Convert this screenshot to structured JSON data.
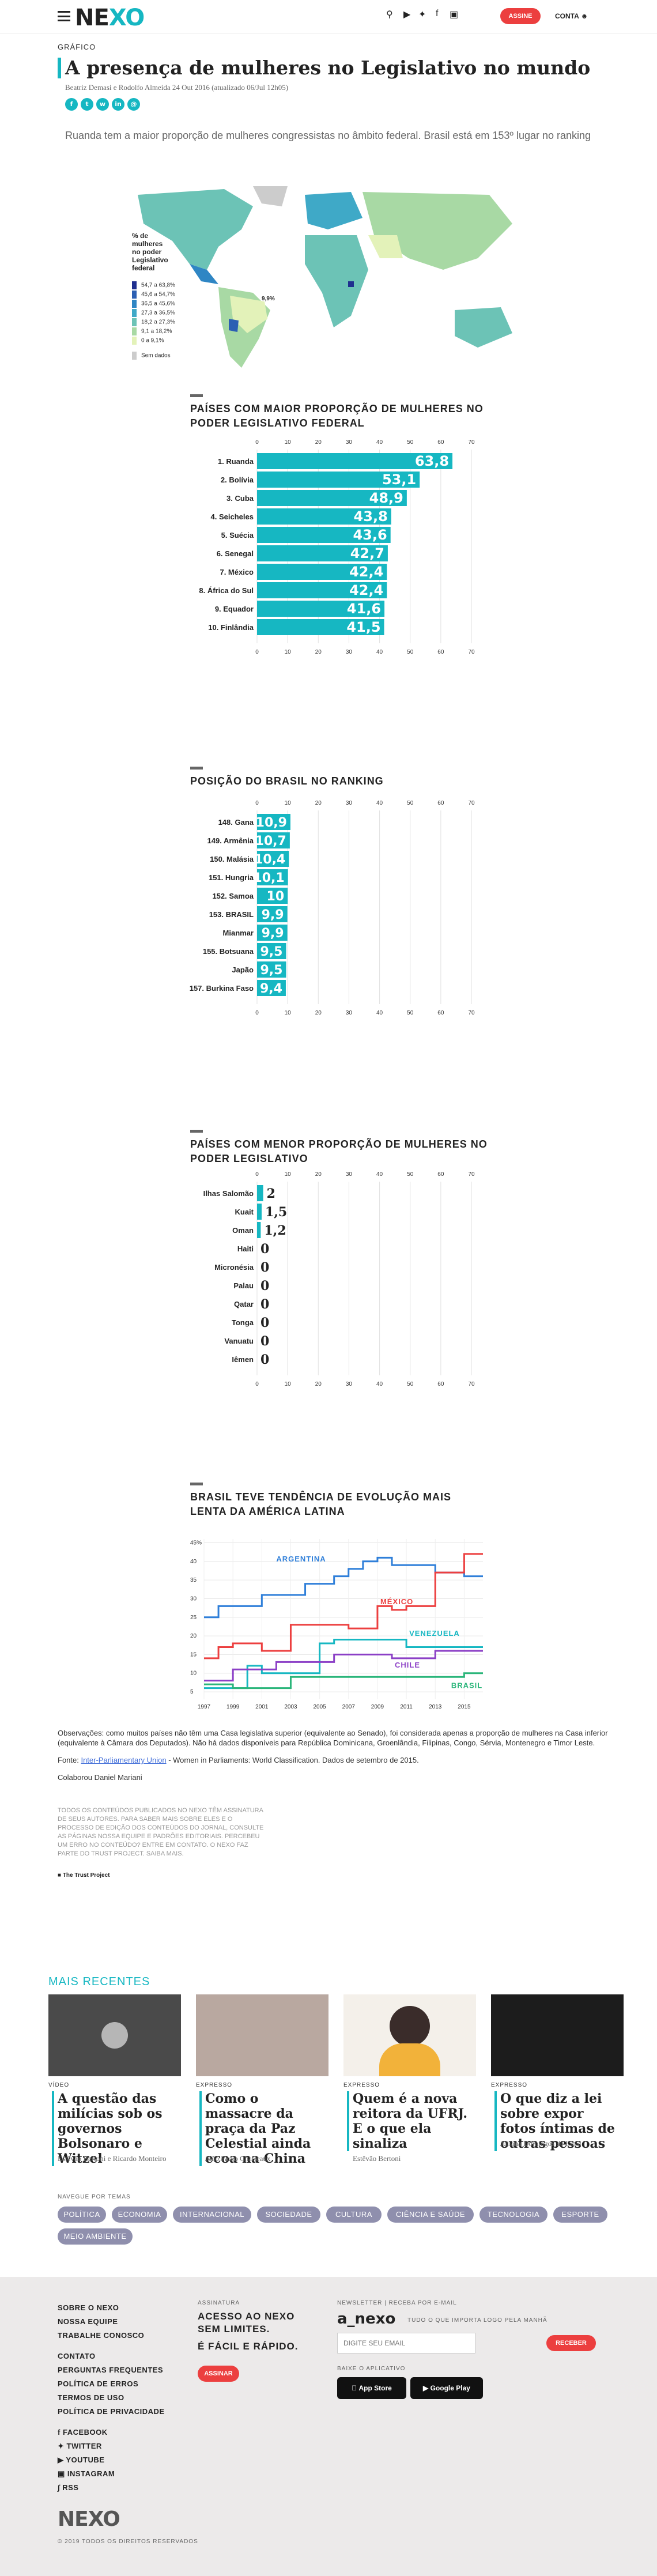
{
  "header": {
    "logo_pre": "NE",
    "logo_post": "XO",
    "assine": "ASSINE",
    "conta": "CONTA"
  },
  "article": {
    "kicker": "GRÁFICO",
    "title": "A presença de mulheres no Legislativo no mundo",
    "byline": "Beatriz Demasi e Rodolfo Almeida 24 Out 2016 (atualizado 06/Jul 12h05)",
    "lede": "Ruanda tem a maior proporção de mulheres congressistas no âmbito federal. Brasil está em 153º lugar no ranking",
    "share_icons": [
      "facebook-icon",
      "twitter-icon",
      "whatsapp-icon",
      "linkedin-icon",
      "email-icon"
    ]
  },
  "map": {
    "legend_title": "% de mulheres no poder Legislativo federal",
    "legend": [
      {
        "label": "54,7 a 63,8%",
        "color": "#1f2f8f"
      },
      {
        "label": "45,6 a 54,7%",
        "color": "#2b5fb3"
      },
      {
        "label": "36,5 a 45,6%",
        "color": "#2f86c4"
      },
      {
        "label": "27,3 a 36,5%",
        "color": "#3fa9c7"
      },
      {
        "label": "18,2 a 27,3%",
        "color": "#6cc3b6"
      },
      {
        "label": "9,1 a 18,2%",
        "color": "#a8d9a4"
      },
      {
        "label": "0 a 9,1%",
        "color": "#e3f2b9"
      },
      {
        "label": "Sem dados",
        "color": "#cccccc"
      }
    ],
    "brazil_label": "9,9%"
  },
  "chart_data": [
    {
      "type": "bar",
      "title": "PAÍSES COM MAIOR PROPORÇÃO DE MULHERES NO PODER LEGISLATIVO FEDERAL",
      "categories": [
        "1. Ruanda",
        "2. Bolívia",
        "3. Cuba",
        "4. Seicheles",
        "5. Suécia",
        "6. Senegal",
        "7. México",
        "8. África do Sul",
        "9. Equador",
        "10. Finlândia"
      ],
      "values": [
        63.8,
        53.1,
        48.9,
        43.8,
        43.6,
        42.7,
        42.4,
        42.4,
        41.6,
        41.5
      ],
      "labels": [
        "63,8",
        "53,1",
        "48,9",
        "43,8",
        "43,6",
        "42,7",
        "42,4",
        "42,4",
        "41,6",
        "41,5"
      ],
      "xlim": [
        0,
        70
      ],
      "ticks": [
        0,
        10,
        20,
        30,
        40,
        50,
        60,
        70
      ],
      "color": "#16b7c2"
    },
    {
      "type": "bar",
      "title": "POSIÇÃO DO BRASIL NO RANKING",
      "categories": [
        "148. Gana",
        "149. Armênia",
        "150. Malásia",
        "151. Hungria",
        "152. Samoa",
        "153. BRASIL",
        "Mianmar",
        "155. Botsuana",
        "Japão",
        "157. Burkina Faso"
      ],
      "values": [
        10.9,
        10.7,
        10.4,
        10.1,
        10,
        9.9,
        9.9,
        9.5,
        9.5,
        9.4
      ],
      "labels": [
        "10,9",
        "10,7",
        "10,4",
        "10,1",
        "10",
        "9,9",
        "9,9",
        "9,5",
        "9,5",
        "9,4"
      ],
      "xlim": [
        0,
        70
      ],
      "ticks": [
        0,
        10,
        20,
        30,
        40,
        50,
        60,
        70
      ],
      "color": "#16b7c2"
    },
    {
      "type": "bar",
      "title": "PAÍSES COM MENOR PROPORÇÃO DE MULHERES NO PODER LEGISLATIVO",
      "categories": [
        "Ilhas Salomão",
        "Kuait",
        "Oman",
        "Haiti",
        "Micronésia",
        "Palau",
        "Qatar",
        "Tonga",
        "Vanuatu",
        "Iêmen"
      ],
      "values": [
        2,
        1.5,
        1.2,
        0,
        0,
        0,
        0,
        0,
        0,
        0
      ],
      "labels": [
        "2",
        "1,5",
        "1,2",
        "0",
        "0",
        "0",
        "0",
        "0",
        "0",
        "0"
      ],
      "xlim": [
        0,
        70
      ],
      "ticks": [
        0,
        10,
        20,
        30,
        40,
        50,
        60,
        70
      ],
      "color": "#16b7c2"
    },
    {
      "type": "line",
      "title": "BRASIL TEVE TENDÊNCIA DE EVOLUÇÃO MAIS LENTA DA AMÉRICA LATINA",
      "x": [
        1997,
        1998,
        1999,
        2000,
        2001,
        2002,
        2003,
        2004,
        2005,
        2006,
        2007,
        2008,
        2009,
        2010,
        2011,
        2012,
        2013,
        2014,
        2015,
        2016
      ],
      "xticks": [
        1997,
        1999,
        2001,
        2003,
        2005,
        2007,
        2009,
        2011,
        2013,
        2015
      ],
      "yticks": [
        5,
        10,
        15,
        20,
        25,
        30,
        35,
        40,
        45
      ],
      "ylim": [
        3,
        46
      ],
      "series": [
        {
          "name": "ARGENTINA",
          "color": "#2f7fd9",
          "values": [
            25,
            28,
            28,
            28,
            31,
            31,
            31,
            34,
            34,
            36,
            38,
            40,
            41,
            39,
            39,
            39,
            37,
            37,
            36,
            36
          ]
        },
        {
          "name": "MÉXICO",
          "color": "#ec3f3f",
          "values": [
            14,
            17,
            18,
            18,
            16,
            16,
            23,
            23,
            23,
            23,
            22,
            22,
            28,
            27,
            28,
            28,
            37,
            37,
            42,
            42
          ]
        },
        {
          "name": "VENEZUELA",
          "color": "#16b7c2",
          "values": [
            6,
            6,
            6,
            12,
            10,
            10,
            10,
            10,
            18,
            19,
            19,
            19,
            19,
            19,
            17,
            17,
            17,
            17,
            17,
            17
          ]
        },
        {
          "name": "CHILE",
          "color": "#8b3fc6",
          "values": [
            8,
            8,
            11,
            11,
            11,
            13,
            13,
            13,
            13,
            15,
            15,
            15,
            15,
            14,
            14,
            14,
            16,
            16,
            16,
            16
          ]
        },
        {
          "name": "BRASIL",
          "color": "#2ab57a",
          "values": [
            7,
            7,
            6,
            6,
            6,
            6,
            9,
            9,
            9,
            9,
            9,
            9,
            9,
            9,
            9,
            9,
            9,
            9,
            10,
            10
          ]
        }
      ]
    }
  ],
  "footnotes": {
    "obs": "Observações: como muitos países não têm uma Casa legislativa superior (equivalente ao Senado), foi considerada apenas a proporção de mulheres na Casa inferior (equivalente à Câmara dos Deputados). Não há dados disponíveis para República Dominicana, Groenlândia, Filipinas, Congo, Sérvia, Montenegro e Timor Leste.",
    "fonte_pre": "Fonte: ",
    "fonte_link": "Inter-Parliamentary Union",
    "fonte_post": " - Women in Parliaments: World Classification. Dados de setembro de 2015.",
    "colab": "Colaborou Daniel Mariani",
    "legal": "TODOS OS CONTEÚDOS PUBLICADOS NO NEXO TÊM ASSINATURA DE SEUS AUTORES. PARA SABER MAIS SOBRE ELES E O PROCESSO DE EDIÇÃO DOS CONTEÚDOS DO JORNAL, CONSULTE AS PÁGINAS NOSSA EQUIPE E PADRÕES EDITORIAIS. PERCEBEU UM ERRO NO CONTEÚDO? ENTRE EM CONTATO. O NEXO FAZ PARTE DO TRUST PROJECT. SAIBA MAIS.",
    "trust": "The Trust Project"
  },
  "recent": {
    "heading": "MAIS RECENTES",
    "cards": [
      {
        "kicker": "VÍDEO",
        "title": "A questão das milícias sob os governos Bolsonaro e Witzel",
        "author": "Estêvão Bertoni e Ricardo Monteiro"
      },
      {
        "kicker": "EXPRESSO",
        "title": "Como o massacre da praça da Paz Celestial ainda ecoa na China",
        "author": "João Paulo Charleaux"
      },
      {
        "kicker": "EXPRESSO",
        "title": "Quem é a nova reitora da UFRJ. E o que ela sinaliza",
        "author": "Estêvão Bertoni"
      },
      {
        "kicker": "EXPRESSO",
        "title": "O que diz a lei sobre expor fotos íntimas de outras pessoas",
        "author": "Juliana Domingos de Lima"
      }
    ]
  },
  "topics": {
    "heading": "NAVEGUE POR TEMAS",
    "items": [
      "POLÍTICA",
      "ECONOMIA",
      "INTERNACIONAL",
      "SOCIEDADE",
      "CULTURA",
      "CIÊNCIA E SAÚDE",
      "TECNOLOGIA",
      "ESPORTE",
      "MEIO AMBIENTE"
    ]
  },
  "footer": {
    "col1": [
      "SOBRE O NEXO",
      "NOSSA EQUIPE",
      "TRABALHE CONOSCO"
    ],
    "col2": [
      "CONTATO",
      "PERGUNTAS FREQUENTES",
      "POLÍTICA DE ERROS",
      "TERMOS DE USO",
      "POLÍTICA DE PRIVACIDADE"
    ],
    "social": [
      "FACEBOOK",
      "TWITTER",
      "YOUTUBE",
      "INSTAGRAM",
      "RSS"
    ],
    "sub_kicker": "ASSINATURA",
    "sub_line1": "ACESSO AO NEXO SEM LIMITES.",
    "sub_line2": "É FÁCIL E RÁPIDO.",
    "sub_button": "ASSINAR",
    "news_kicker": "NEWSLETTER | RECEBA POR E-MAIL",
    "news_logo": "a_nexo",
    "news_tag": "TUDO O QUE IMPORTA LOGO PELA MANHÃ",
    "email_placeholder": "DIGITE SEU EMAIL",
    "news_button": "RECEBER",
    "app_kicker": "BAIXE O APLICATIVO",
    "app_store": "App Store",
    "google_play": "Google Play",
    "logo": "NEXO",
    "copyright": "© 2019 TODOS OS DIREITOS RESERVADOS"
  }
}
